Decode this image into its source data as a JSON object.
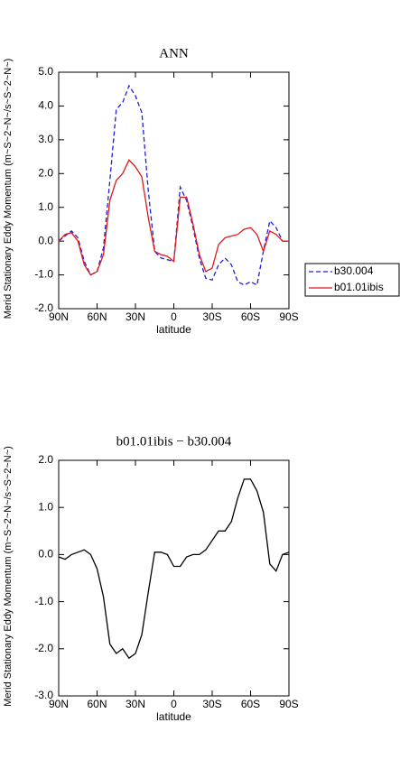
{
  "chart_data": [
    {
      "type": "line",
      "title": "ANN",
      "xlabel": "latitude",
      "ylabel": "Merid Stationary Eddy Momentum (m~S~2~N~/s~S~2~N~)",
      "x": [
        90,
        85,
        80,
        75,
        70,
        65,
        60,
        55,
        50,
        45,
        40,
        35,
        30,
        25,
        20,
        15,
        10,
        5,
        0,
        -5,
        -10,
        -15,
        -20,
        -25,
        -30,
        -35,
        -40,
        -45,
        -50,
        -55,
        -60,
        -65,
        -70,
        -75,
        -80,
        -85,
        -90
      ],
      "xlim": [
        90,
        -90
      ],
      "xticks": [
        {
          "value": 90,
          "label": "90N"
        },
        {
          "value": 60,
          "label": "60N"
        },
        {
          "value": 30,
          "label": "30N"
        },
        0,
        {
          "value": -30,
          "label": "30S"
        },
        {
          "value": -60,
          "label": "60S"
        },
        {
          "value": -90,
          "label": "90S"
        }
      ],
      "ylim": [
        -2,
        5
      ],
      "yticks": [
        {
          "value": 5,
          "label": "5.0"
        },
        {
          "value": 4,
          "label": "4.0"
        },
        {
          "value": 3,
          "label": "3.0"
        },
        {
          "value": 2,
          "label": "2.0"
        },
        {
          "value": 1,
          "label": "1.0"
        },
        {
          "value": 0,
          "label": "0.0"
        },
        {
          "value": -1,
          "label": "-1.0"
        },
        {
          "value": -2,
          "label": "-2.0"
        }
      ],
      "legend": "outside-right",
      "series": [
        {
          "name": "b30.004",
          "color": "#1f1fd6",
          "line_style": "dashed",
          "values": [
            0.0,
            0.15,
            0.3,
            0.1,
            -0.6,
            -1.0,
            -0.9,
            -0.2,
            1.8,
            3.9,
            4.1,
            4.6,
            4.3,
            3.8,
            1.5,
            -0.3,
            -0.5,
            -0.55,
            -0.6,
            1.6,
            1.2,
            0.4,
            -0.5,
            -1.1,
            -1.15,
            -0.7,
            -0.5,
            -0.7,
            -1.2,
            -1.3,
            -1.2,
            -1.3,
            -0.3,
            0.6,
            0.4,
            0.0,
            0.0
          ]
        },
        {
          "name": "b01.01ibis",
          "color": "#e01818",
          "line_style": "solid",
          "values": [
            0.0,
            0.2,
            0.25,
            0.0,
            -0.7,
            -1.0,
            -0.9,
            -0.4,
            1.2,
            1.8,
            2.0,
            2.4,
            2.2,
            1.9,
            0.7,
            -0.3,
            -0.4,
            -0.45,
            -0.6,
            1.3,
            1.3,
            0.5,
            -0.4,
            -0.9,
            -0.8,
            -0.1,
            0.1,
            0.15,
            0.2,
            0.35,
            0.4,
            0.2,
            -0.3,
            0.3,
            0.2,
            0.0,
            0.0
          ]
        }
      ]
    },
    {
      "type": "line",
      "title": "b01.01ibis − b30.004",
      "xlabel": "latitude",
      "ylabel": "Merid Stationary Eddy Momentum (m~S~2~N~/s~S~2~N~)",
      "x": [
        90,
        85,
        80,
        75,
        70,
        65,
        60,
        55,
        50,
        45,
        40,
        35,
        30,
        25,
        20,
        15,
        10,
        5,
        0,
        -5,
        -10,
        -15,
        -20,
        -25,
        -30,
        -35,
        -40,
        -45,
        -50,
        -55,
        -60,
        -65,
        -70,
        -75,
        -80,
        -85,
        -90
      ],
      "xlim": [
        90,
        -90
      ],
      "xticks": [
        {
          "value": 90,
          "label": "90N"
        },
        {
          "value": 60,
          "label": "60N"
        },
        {
          "value": 30,
          "label": "30N"
        },
        0,
        {
          "value": -30,
          "label": "30S"
        },
        {
          "value": -60,
          "label": "60S"
        },
        {
          "value": -90,
          "label": "90S"
        }
      ],
      "ylim": [
        -3,
        2
      ],
      "yticks": [
        {
          "value": 2,
          "label": "2.0"
        },
        {
          "value": 1,
          "label": "1.0"
        },
        {
          "value": 0,
          "label": "0.0"
        },
        {
          "value": -1,
          "label": "-1.0"
        },
        {
          "value": -2,
          "label": "-2.0"
        },
        {
          "value": -3,
          "label": "-3.0"
        }
      ],
      "color": "#000000",
      "values": [
        -0.05,
        -0.1,
        0.0,
        0.05,
        0.1,
        0.0,
        -0.3,
        -0.9,
        -1.9,
        -2.1,
        -2.0,
        -2.2,
        -2.1,
        -1.7,
        -0.8,
        0.05,
        0.05,
        0.0,
        -0.25,
        -0.25,
        -0.05,
        0.0,
        0.0,
        0.1,
        0.3,
        0.5,
        0.5,
        0.7,
        1.2,
        1.6,
        1.6,
        1.35,
        0.9,
        -0.2,
        -0.35,
        0.0,
        0.05
      ]
    }
  ]
}
